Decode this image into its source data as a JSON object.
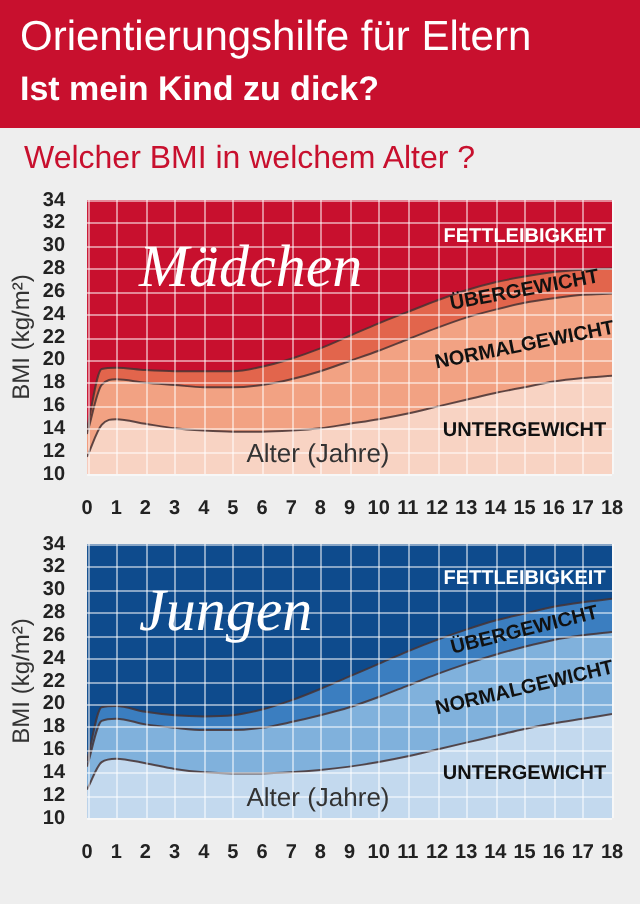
{
  "chart_data": [
    {
      "type": "area",
      "title": "Orientierungshilfe für Eltern",
      "subtitle": "Ist mein Kind zu dick?",
      "xlabel": "Alter (Jahre)",
      "ylabel": "BMI (kg/m²)",
      "annotations": [
        "Welcher BMI in welchem Alter ?",
        "Mädchen",
        "FETTLEIBIGKEIT",
        "ÜBERGEWICHT",
        "NORMALGEWICHT",
        "UNTERGEWICHT"
      ],
      "x": [
        0,
        0.5,
        1,
        2,
        3,
        4,
        5,
        6,
        7,
        8,
        9,
        10,
        11,
        12,
        13,
        14,
        15,
        16,
        17,
        18
      ],
      "series": [
        {
          "color": "#f8d3c3",
          "values": [
            11.5,
            14.3,
            14.8,
            14.4,
            14,
            13.8,
            13.7,
            13.7,
            13.8,
            14,
            14.4,
            14.8,
            15.3,
            15.9,
            16.5,
            17.1,
            17.6,
            18.1,
            18.4,
            18.6
          ]
        },
        {
          "color": "#f2a283",
          "values": [
            13.5,
            17.8,
            18.3,
            18,
            17.8,
            17.6,
            17.6,
            17.8,
            18.3,
            19,
            19.9,
            20.8,
            21.8,
            22.8,
            23.7,
            24.4,
            25,
            25.4,
            25.7,
            25.8
          ]
        },
        {
          "color": "#e2654c",
          "values": [
            14,
            19.2,
            19.3,
            19.1,
            19,
            19,
            19,
            19.4,
            20.1,
            21,
            22.1,
            23.2,
            24.2,
            25.2,
            26.1,
            26.8,
            27.3,
            27.7,
            27.9,
            28
          ]
        }
      ],
      "bands": [
        {
          "axis": "y",
          "from": 10,
          "to": 34,
          "color": "#c8102e"
        }
      ],
      "xlim": [
        0,
        18
      ],
      "xticks": [
        0,
        1,
        2,
        3,
        4,
        5,
        6,
        7,
        8,
        9,
        10,
        11,
        12,
        13,
        14,
        15,
        16,
        17,
        18
      ],
      "ylim": [
        10,
        34
      ],
      "yticks": [
        10,
        12,
        14,
        16,
        18,
        20,
        22,
        24,
        26,
        28,
        30,
        32,
        34
      ],
      "grid": true
    },
    {
      "type": "area",
      "xlabel": "Alter (Jahre)",
      "ylabel": "BMI (kg/m²)",
      "annotations": [
        "Jungen",
        "FETTLEIBIGKEIT",
        "ÜBERGEWICHT",
        "NORMALGEWICHT",
        "UNTERGEWICHT"
      ],
      "x": [
        0,
        0.5,
        1,
        2,
        3,
        4,
        5,
        6,
        7,
        8,
        9,
        10,
        11,
        12,
        13,
        14,
        15,
        16,
        17,
        18
      ],
      "series": [
        {
          "color": "#c3d9ee",
          "values": [
            12.5,
            14.9,
            15.2,
            14.8,
            14.3,
            14,
            13.9,
            13.9,
            14,
            14.2,
            14.5,
            14.9,
            15.4,
            16,
            16.6,
            17.2,
            17.8,
            18.3,
            18.7,
            19.1
          ]
        },
        {
          "color": "#80b1dc",
          "values": [
            14.5,
            18.5,
            18.7,
            18.2,
            17.9,
            17.7,
            17.7,
            17.9,
            18.4,
            19,
            19.7,
            20.6,
            21.6,
            22.6,
            23.5,
            24.3,
            25,
            25.6,
            26,
            26.3
          ]
        },
        {
          "color": "#3b7ec0",
          "values": [
            15,
            19.7,
            19.8,
            19.3,
            19,
            18.9,
            19,
            19.5,
            20.3,
            21.3,
            22.4,
            23.5,
            24.6,
            25.6,
            26.5,
            27.3,
            27.9,
            28.5,
            28.9,
            29.2
          ]
        }
      ],
      "bands": [
        {
          "axis": "y",
          "from": 10,
          "to": 34,
          "color": "#0e4b8d"
        }
      ],
      "xlim": [
        0,
        18
      ],
      "xticks": [
        0,
        1,
        2,
        3,
        4,
        5,
        6,
        7,
        8,
        9,
        10,
        11,
        12,
        13,
        14,
        15,
        16,
        17,
        18
      ],
      "ylim": [
        10,
        34
      ],
      "yticks": [
        10,
        12,
        14,
        16,
        18,
        20,
        22,
        24,
        26,
        28,
        30,
        32,
        34
      ],
      "grid": true
    }
  ]
}
